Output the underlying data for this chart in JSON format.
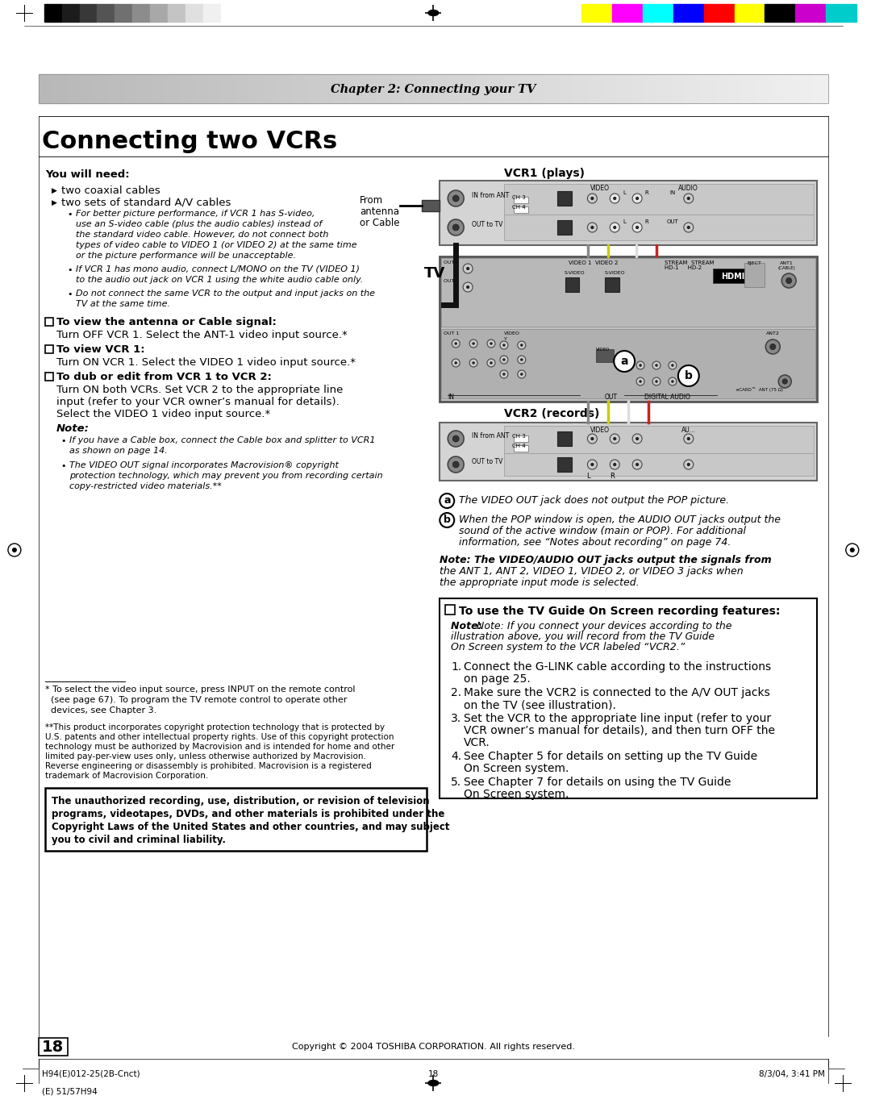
{
  "page_title": "Connecting two VCRs",
  "chapter_header": "Chapter 2: Connecting your TV",
  "page_number": "18",
  "copyright": "Copyright © 2004 TOSHIBA CORPORATION. All rights reserved.",
  "footer_left": "H94(E)012-25(2B-Cnct)",
  "footer_center": "18",
  "footer_right": "8/3/04, 3:41 PM",
  "footer_model": "(E) 51/57H94",
  "you_will_need": "You will need:",
  "bullets": [
    "two coaxial cables",
    "two sets of standard A/V cables"
  ],
  "sub_bullets": [
    [
      "For better picture performance, if VCR 1 has S-video,",
      "use an S-video cable (plus the audio cables) instead of",
      "the standard video cable. However, do not connect both",
      "types of video cable to VIDEO 1 (or VIDEO 2) at the same time",
      "or the picture performance will be unacceptable."
    ],
    [
      "If VCR 1 has mono audio, connect L/MONO on the TV (VIDEO 1)",
      "to the audio out jack on VCR 1 using the white audio cable only."
    ],
    [
      "Do not connect the same VCR to the output and input jacks on the",
      "TV at the same time."
    ]
  ],
  "checkbox_sections": [
    {
      "title": "To view the antenna or Cable signal:",
      "body": [
        "Turn OFF VCR 1. Select the ANT-1 video input source.*"
      ]
    },
    {
      "title": "To view VCR 1:",
      "body": [
        "Turn ON VCR 1. Select the VIDEO 1 video input source.*"
      ]
    },
    {
      "title": "To dub or edit from VCR 1 to VCR 2:",
      "body": [
        "Turn ON both VCRs. Set VCR 2 to the appropriate line",
        "input (refer to your VCR owner’s manual for details).",
        "Select the VIDEO 1 video input source.*"
      ]
    }
  ],
  "note_title": "Note:",
  "note_bullets": [
    [
      "If you have a Cable box, connect the Cable box and splitter to VCR1",
      "as shown on page 14."
    ],
    [
      "The VIDEO OUT signal incorporates Macrovision® copyright",
      "protection technology, which may prevent you from recording certain",
      "copy-restricted video materials.**"
    ]
  ],
  "footnote_line": "* To select the video input source, press INPUT on the remote control",
  "footnote_line2": "  (see page 67). To program the TV remote control to operate other",
  "footnote_line3": "  devices, see Chapter 3.",
  "footnote2_lines": [
    "**This product incorporates copyright protection technology that is protected by",
    "U.S. patents and other intellectual property rights. Use of this copyright protection",
    "technology must be authorized by Macrovision and is intended for home and other",
    "limited pay-per-view uses only, unless otherwise authorized by Macrovision.",
    "Reverse engineering or disassembly is prohibited. Macrovision is a registered",
    "trademark of Macrovision Corporation."
  ],
  "warning_lines": [
    "The unauthorized recording, use, distribution, or revision of television",
    "programs, videotapes, DVDs, and other materials is prohibited under the",
    "Copyright Laws of the United States and other countries, and may subject",
    "you to civil and criminal liability."
  ],
  "vcr1_label": "VCR1 (plays)",
  "vcr2_label": "VCR2 (records)",
  "tv_label": "TV",
  "from_label_lines": [
    "From",
    "antenna",
    "or Cable"
  ],
  "note_a": "The VIDEO OUT jack does not output the POP picture.",
  "note_b_lines": [
    "When the POP window is open, the AUDIO OUT jacks output the",
    "sound of the active window (main or POP). For additional",
    "information, see “Notes about recording” on page 74."
  ],
  "bold_note_lines": [
    "Note: The VIDEO/AUDIO OUT jacks output the signals from",
    "the ANT 1, ANT 2, VIDEO 1, VIDEO 2, or VIDEO 3 jacks when",
    "the appropriate input mode is selected."
  ],
  "tvguide_title": "To use the TV Guide On Screen recording features:",
  "tvguide_note_lines": [
    "Note: If you connect your devices according to the",
    "illustration above, you will record from the TV Guide",
    "On Screen system to the VCR labeled “VCR2.”"
  ],
  "tvguide_steps": [
    [
      "Connect the G-LINK cable according to the instructions",
      "on page 25."
    ],
    [
      "Make sure the VCR2 is connected to the A/V OUT jacks",
      "on the TV (see illustration)."
    ],
    [
      "Set the VCR to the appropriate line input (refer to your",
      "VCR owner’s manual for details), and then turn OFF the",
      "VCR."
    ],
    [
      "See Chapter 5 for details on setting up the TV Guide",
      "On Screen system."
    ],
    [
      "See Chapter 7 for details on using the TV Guide",
      "On Screen system."
    ]
  ],
  "grayscale_bars": [
    "#000000",
    "#1c1c1c",
    "#383838",
    "#545454",
    "#707070",
    "#8c8c8c",
    "#a8a8a8",
    "#c4c4c4",
    "#e0e0e0",
    "#f0f0f0",
    "#ffffff"
  ],
  "color_bars": [
    "#ffff00",
    "#ff00ff",
    "#00ffff",
    "#0000ff",
    "#ff0000",
    "#ffff00",
    "#000000",
    "#cc00cc",
    "#00cccc"
  ]
}
